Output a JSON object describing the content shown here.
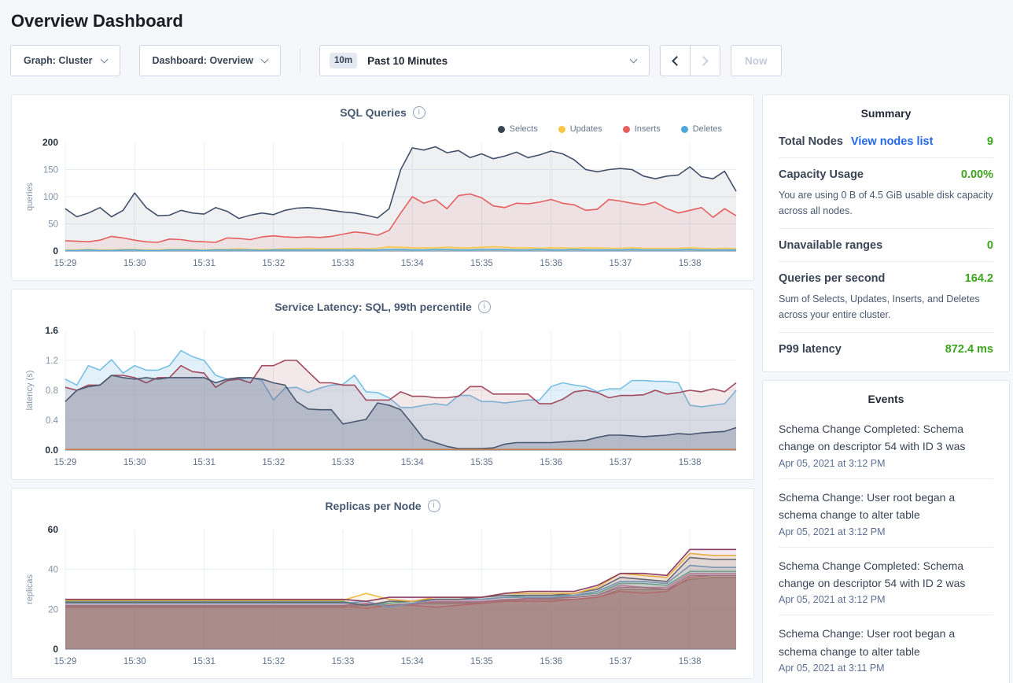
{
  "page": {
    "title": "Overview Dashboard"
  },
  "colors": {
    "link_blue": "#2268e8",
    "positive_green": "#3ca41d",
    "page_bg": "#f5f7fa"
  },
  "toolbar": {
    "graph_dropdown_label": "Graph: Cluster",
    "dashboard_dropdown_label": "Dashboard: Overview",
    "time_badge": "10m",
    "time_label": "Past 10 Minutes",
    "now_label": "Now"
  },
  "chart_data": [
    {
      "type": "area",
      "title": "SQL Queries",
      "ylabel": "queries",
      "ymax": 200,
      "yticks": [
        0,
        50,
        100,
        150,
        200
      ],
      "ytick_labels": [
        "0",
        "50",
        "100",
        "150",
        "200"
      ],
      "x_labels": [
        "15:29",
        "15:30",
        "15:31",
        "15:32",
        "15:33",
        "15:34",
        "15:35",
        "15:36",
        "15:37",
        "15:38"
      ],
      "interval_s": 10,
      "span_s": 580,
      "legend": [
        {
          "label": "Selects",
          "color": "#394455"
        },
        {
          "label": "Updates",
          "color": "#fdc544"
        },
        {
          "label": "Inserts",
          "color": "#ea5e61"
        },
        {
          "label": "Deletes",
          "color": "#4da6dc"
        }
      ],
      "series": [
        {
          "name": "Selects",
          "color": "#43506a",
          "fill": "rgba(70,85,110,0.09)",
          "values": [
            78,
            63,
            70,
            80,
            63,
            75,
            107,
            80,
            65,
            66,
            75,
            70,
            68,
            80,
            73,
            60,
            66,
            70,
            67,
            75,
            79,
            80,
            78,
            75,
            72,
            70,
            66,
            61,
            78,
            150,
            190,
            186,
            192,
            181,
            185,
            172,
            179,
            170,
            175,
            182,
            172,
            177,
            184,
            179,
            168,
            150,
            146,
            150,
            152,
            150,
            138,
            133,
            138,
            140,
            155,
            137,
            133,
            147,
            110
          ]
        },
        {
          "name": "Inserts",
          "color": "#e85f60",
          "fill": "rgba(232,95,95,0.10)",
          "values": [
            19,
            18,
            17,
            20,
            27,
            24,
            20,
            17,
            16,
            22,
            21,
            18,
            17,
            16,
            24,
            23,
            21,
            26,
            28,
            26,
            25,
            26,
            25,
            27,
            31,
            35,
            33,
            29,
            38,
            70,
            100,
            88,
            95,
            78,
            102,
            105,
            98,
            83,
            80,
            88,
            87,
            90,
            95,
            88,
            85,
            75,
            77,
            95,
            92,
            88,
            85,
            90,
            78,
            70,
            75,
            80,
            62,
            78,
            65
          ]
        },
        {
          "name": "Updates",
          "color": "#fbc94a",
          "fill": "rgba(251,201,74,0.25)",
          "values": [
            2,
            2,
            3,
            2,
            2,
            3,
            3,
            2,
            2,
            3,
            3,
            3,
            2,
            3,
            3,
            4,
            3,
            3,
            3,
            4,
            4,
            5,
            4,
            4,
            4,
            5,
            4,
            5,
            8,
            7,
            6,
            6,
            6,
            7,
            6,
            6,
            7,
            8,
            7,
            6,
            6,
            5,
            6,
            6,
            5,
            6,
            6,
            5,
            5,
            6,
            5,
            5,
            5,
            5,
            6,
            5,
            4,
            5,
            4
          ]
        },
        {
          "name": "Deletes",
          "color": "#57aede",
          "fill": "rgba(87,174,222,0.35)",
          "values": [
            1,
            1,
            2,
            1,
            1,
            2,
            2,
            1,
            1,
            2,
            2,
            2,
            1,
            2,
            2,
            2,
            2,
            1,
            2,
            2,
            2,
            2,
            2,
            2,
            2,
            2,
            2,
            2,
            3,
            3,
            2,
            2,
            3,
            3,
            2,
            2,
            3,
            3,
            3,
            2,
            2,
            3,
            2,
            2,
            3,
            2,
            2,
            2,
            2,
            3,
            2,
            2,
            2,
            2,
            3,
            2,
            2,
            2,
            2
          ]
        }
      ]
    },
    {
      "type": "area",
      "title": "Service Latency: SQL, 99th percentile",
      "ylabel": "latency (s)",
      "ymax": 1.6,
      "yticks": [
        0,
        0.4,
        0.8,
        1.2,
        1.6
      ],
      "ytick_labels": [
        "0.0",
        "0.4",
        "0.8",
        "1.2",
        "1.6"
      ],
      "x_labels": [
        "15:29",
        "15:30",
        "15:31",
        "15:32",
        "15:33",
        "15:34",
        "15:35",
        "15:36",
        "15:37",
        "15:38"
      ],
      "interval_s": 10,
      "span_s": 580,
      "legend": [],
      "series": [
        {
          "color": "#79bfe4",
          "fill": "rgba(121,191,228,0.22)",
          "values": [
            0.95,
            0.87,
            1.13,
            1.07,
            1.21,
            1.03,
            1.13,
            1.07,
            1.07,
            1.13,
            1.33,
            1.25,
            1.2,
            1.0,
            0.95,
            0.95,
            0.97,
            0.93,
            0.67,
            0.83,
            0.84,
            0.77,
            0.83,
            0.87,
            0.88,
            1.0,
            0.78,
            0.77,
            0.7,
            0.57,
            0.57,
            0.6,
            0.62,
            0.6,
            0.73,
            0.73,
            0.65,
            0.65,
            0.63,
            0.65,
            0.67,
            0.67,
            0.85,
            0.9,
            0.87,
            0.85,
            0.78,
            0.82,
            0.82,
            0.93,
            0.93,
            0.92,
            0.92,
            0.9,
            0.6,
            0.58,
            0.6,
            0.62,
            0.8
          ]
        },
        {
          "color": "#a34a5e",
          "fill": "rgba(163,74,94,0.13)",
          "values": [
            0.84,
            0.8,
            0.87,
            0.87,
            1.0,
            1.0,
            0.97,
            0.9,
            0.97,
            0.97,
            1.13,
            1.05,
            1.03,
            0.84,
            0.93,
            0.95,
            0.9,
            1.13,
            1.13,
            1.2,
            1.2,
            1.05,
            0.9,
            0.9,
            0.87,
            0.87,
            0.67,
            0.67,
            0.67,
            0.78,
            0.72,
            0.72,
            0.7,
            0.7,
            0.72,
            0.85,
            0.85,
            0.75,
            0.75,
            0.75,
            0.75,
            0.62,
            0.62,
            0.68,
            0.78,
            0.8,
            0.77,
            0.7,
            0.73,
            0.73,
            0.74,
            0.8,
            0.75,
            0.77,
            0.8,
            0.78,
            0.82,
            0.78,
            0.9
          ]
        },
        {
          "color": "#4a5872",
          "fill": "rgba(74,88,114,0.25)",
          "values": [
            0.65,
            0.8,
            0.85,
            0.87,
            1.0,
            0.97,
            0.95,
            0.97,
            0.95,
            0.97,
            0.97,
            0.97,
            0.97,
            0.9,
            0.95,
            0.97,
            0.97,
            0.95,
            0.9,
            0.87,
            0.65,
            0.55,
            0.54,
            0.54,
            0.35,
            0.38,
            0.41,
            0.63,
            0.6,
            0.54,
            0.35,
            0.15,
            0.1,
            0.05,
            0.02,
            0.02,
            0.02,
            0.03,
            0.08,
            0.1,
            0.1,
            0.1,
            0.1,
            0.11,
            0.12,
            0.13,
            0.17,
            0.2,
            0.2,
            0.19,
            0.18,
            0.19,
            0.2,
            0.22,
            0.21,
            0.23,
            0.24,
            0.25,
            0.3
          ]
        },
        {
          "color": "#c8804d",
          "fill": "none",
          "flat": 0.008
        }
      ]
    },
    {
      "type": "area",
      "title": "Replicas per Node",
      "ylabel": "replicas",
      "ymax": 60,
      "yticks": [
        0,
        20,
        40,
        60
      ],
      "ytick_labels": [
        "0",
        "20",
        "40",
        "60"
      ],
      "x_labels": [
        "15:29",
        "15:30",
        "15:31",
        "15:32",
        "15:33",
        "15:34",
        "15:35",
        "15:36",
        "15:37",
        "15:38"
      ],
      "interval_s": 20,
      "span_s": 580,
      "legend": [],
      "series": [
        {
          "color": "#9c7a5b",
          "fill": "rgba(140,100,90,0.55)",
          "values": [
            21,
            21,
            21,
            21,
            21,
            21,
            21,
            21,
            21,
            21,
            21,
            21,
            21,
            22,
            22,
            23,
            23,
            23,
            23,
            24,
            25,
            25,
            25,
            26,
            30,
            30,
            30,
            35,
            36,
            36
          ]
        },
        {
          "color": "#d95757",
          "fill": "rgba(217,87,87,0.15)",
          "values": [
            21.5,
            21.5,
            21.5,
            21.5,
            21.5,
            21.5,
            21.5,
            21.5,
            21.5,
            21.5,
            21.5,
            21.5,
            21.5,
            20.5,
            22,
            22,
            21,
            22,
            23,
            24,
            24,
            24,
            25,
            26,
            29,
            28,
            29,
            36,
            37,
            37
          ]
        },
        {
          "color": "#dd7bab",
          "fill": "rgba(221,123,171,0.10)",
          "values": [
            22,
            22,
            22,
            22,
            22,
            22,
            22,
            22,
            22,
            22,
            22,
            22,
            22,
            23,
            21.5,
            23,
            24,
            24,
            24,
            25,
            25,
            26,
            26,
            27,
            32,
            31,
            31,
            38,
            38,
            38
          ]
        },
        {
          "color": "#b2638a",
          "fill": "rgba(178,99,138,0.10)",
          "values": [
            21.8,
            21.8,
            21.8,
            21.8,
            21.8,
            21.8,
            21.8,
            21.8,
            21.8,
            21.8,
            21.8,
            21.8,
            21.8,
            22.5,
            22,
            22.5,
            23.5,
            23.5,
            23.5,
            24.5,
            25.5,
            25.5,
            26,
            27,
            31,
            31,
            30,
            37,
            37,
            37
          ]
        },
        {
          "color": "#56b79a",
          "fill": "rgba(86,183,154,0.10)",
          "values": [
            24,
            24,
            24,
            24,
            24,
            24,
            24,
            24,
            24,
            24,
            24,
            24,
            24,
            22,
            23,
            24,
            25,
            25,
            25,
            26,
            27,
            27,
            27,
            28,
            33,
            33,
            32,
            39,
            39,
            39
          ]
        },
        {
          "color": "#6aa3d7",
          "fill": "rgba(106,163,215,0.10)",
          "values": [
            23,
            23,
            23,
            23,
            23,
            23,
            23,
            23,
            23,
            23,
            23,
            23,
            23,
            24,
            21,
            23,
            25,
            25,
            25,
            26,
            26,
            26,
            27,
            29,
            34,
            34,
            33,
            42,
            41,
            41
          ]
        },
        {
          "color": "#55657d",
          "fill": "rgba(85,101,125,0.10)",
          "values": [
            23.5,
            23.5,
            23.5,
            23.5,
            23.5,
            23.5,
            23.5,
            23.5,
            23.5,
            23.5,
            23.5,
            23.5,
            23.5,
            22,
            24,
            24,
            25,
            25,
            26,
            27,
            27,
            27,
            28,
            30,
            36,
            35,
            34,
            46,
            45,
            45
          ]
        },
        {
          "color": "#f0bd3e",
          "fill": "rgba(240,189,62,0.10)",
          "values": [
            24.5,
            24.5,
            24.5,
            24.5,
            24.5,
            24.5,
            24.5,
            24.5,
            24.5,
            24.5,
            24.5,
            24.5,
            24.5,
            28,
            25,
            24,
            26,
            26,
            26,
            28,
            28,
            28,
            28,
            31,
            38,
            37,
            36,
            48,
            47,
            47
          ]
        },
        {
          "color": "#8d3d63",
          "fill": "rgba(141,61,99,0.10)",
          "values": [
            25,
            25,
            25,
            25,
            25,
            25,
            25,
            25,
            25,
            25,
            25,
            25,
            25,
            24,
            26,
            26,
            26,
            26,
            26,
            28,
            29,
            29,
            29,
            32,
            38,
            38,
            37,
            50,
            50,
            50
          ]
        }
      ]
    }
  ],
  "summary": {
    "title": "Summary",
    "rows": [
      {
        "label": "Total Nodes",
        "link": "View nodes list",
        "value": "9"
      },
      {
        "label": "Capacity Usage",
        "value": "0.00%",
        "desc": "You are using 0 B of 4.5 GiB usable disk capacity across all nodes."
      },
      {
        "label": "Unavailable ranges",
        "value": "0"
      },
      {
        "label": "Queries per second",
        "value": "164.2",
        "desc": "Sum of Selects, Updates, Inserts, and Deletes across your entire cluster."
      },
      {
        "label": "P99 latency",
        "value": "872.4 ms"
      }
    ]
  },
  "events": {
    "title": "Events",
    "items": [
      {
        "text": "Schema Change Completed: Schema change on descriptor 54 with ID 3 was",
        "time": "Apr 05, 2021 at 3:12 PM"
      },
      {
        "text": "Schema Change: User root began a schema change to alter table",
        "time": "Apr 05, 2021 at 3:12 PM"
      },
      {
        "text": "Schema Change Completed: Schema change on descriptor 54 with ID 2 was",
        "time": "Apr 05, 2021 at 3:12 PM"
      },
      {
        "text": "Schema Change: User root began a schema change to alter table",
        "time": "Apr 05, 2021 at 3:11 PM"
      }
    ]
  }
}
